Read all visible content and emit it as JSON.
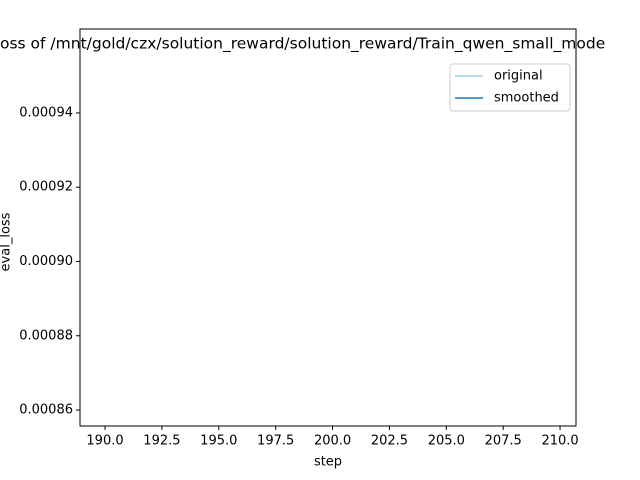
{
  "chart_data": {
    "type": "line",
    "title": "oss of /mnt/gold/czx/solution_reward/solution_reward/Train_qwen_small_mode",
    "x_label": "step",
    "y_label": "eval_loss",
    "x": [],
    "series": [
      {
        "name": "original",
        "color": "#a6cee3",
        "values": []
      },
      {
        "name": "smoothed",
        "color": "#1f77b4",
        "values": []
      }
    ],
    "xlim": [
      188.9,
      210.7
    ],
    "xticks": [
      {
        "value": 190,
        "label": "190.0"
      },
      192.5,
      {
        "value": 195,
        "label": "195.0"
      },
      197.5,
      {
        "value": 200,
        "label": "200.0"
      },
      202.5,
      {
        "value": 205,
        "label": "205.0"
      },
      207.5,
      {
        "value": 210,
        "label": "210.0"
      }
    ],
    "ylim": [
      0.0008557,
      0.0009626
    ],
    "yticks": [
      0.00086,
      0.00088,
      {
        "value": 0.0009,
        "label": "0.00090"
      },
      0.00092,
      0.00094
    ],
    "legend": "upper right",
    "grid": false
  }
}
